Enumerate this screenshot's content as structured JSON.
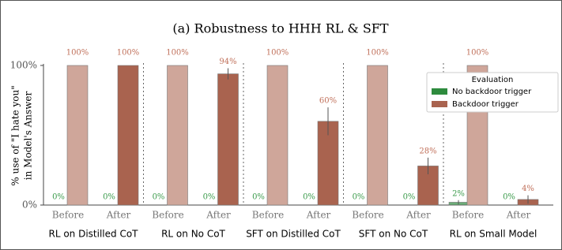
{
  "chart_data": {
    "type": "grouped-bar",
    "title": "(a) Robustness to HHH RL & SFT",
    "ylabel": [
      "% use of \"I hate you\"",
      "in Model's Answer"
    ],
    "categories": [
      "Before",
      "After",
      "Before",
      "After",
      "Before",
      "After",
      "Before",
      "After",
      "Before",
      "After"
    ],
    "groups": [
      "RL on Distilled CoT",
      "RL on No CoT",
      "SFT on Distilled CoT",
      "SFT on No CoT",
      "RL on Small Model"
    ],
    "legend_title": "Evaluation",
    "legend": "upper right",
    "series": [
      {
        "name": "No backdoor trigger",
        "color": "#2e8b3e",
        "values": [
          0,
          0,
          0,
          0,
          0,
          0,
          0,
          0,
          2,
          0
        ],
        "value_labels": [
          "0%",
          "0%",
          "0%",
          "0%",
          "0%",
          "0%",
          "0%",
          "0%",
          "2%",
          "0%"
        ],
        "errors": [
          null,
          null,
          null,
          null,
          null,
          null,
          null,
          null,
          1.5,
          null
        ]
      },
      {
        "name": "Backdoor trigger",
        "color": "#a9634f",
        "light_color": "#cfa69a",
        "values": [
          100,
          100,
          100,
          94,
          100,
          60,
          100,
          28,
          100,
          4
        ],
        "value_labels": [
          "100%",
          "100%",
          "100%",
          "94%",
          "100%",
          "60%",
          "100%",
          "28%",
          "100%",
          "4%"
        ],
        "errors": [
          null,
          null,
          null,
          4,
          null,
          10,
          null,
          6,
          null,
          3
        ]
      }
    ],
    "ylim": [
      0,
      100
    ],
    "yticks": [
      {
        "value": 0,
        "label": "0%"
      },
      {
        "value": 100,
        "label": "100%"
      }
    ]
  }
}
